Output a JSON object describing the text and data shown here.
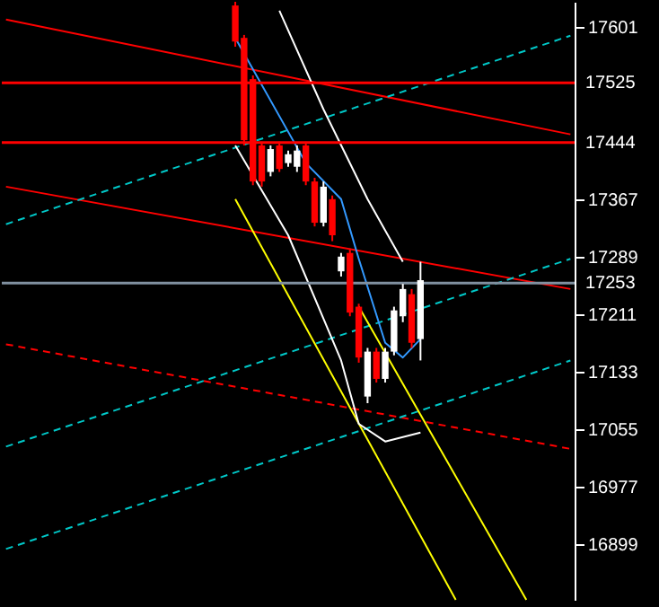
{
  "chart_data": {
    "type": "candlestick",
    "tick_labels": "y",
    "categories": [
      null,
      null,
      null,
      null,
      null,
      null,
      null,
      null,
      null,
      null,
      null,
      null,
      null,
      null,
      null,
      null,
      null,
      null,
      null,
      null,
      null,
      null,
      null,
      null,
      null,
      null,
      null,
      null,
      null,
      null,
      null,
      null,
      null,
      null,
      null,
      null,
      null,
      null,
      null,
      null,
      null,
      null,
      null,
      null,
      null,
      null,
      null,
      null,
      null,
      null,
      null,
      null,
      null,
      null,
      null,
      null,
      null,
      null,
      null,
      null,
      null,
      null,
      null,
      null,
      null
    ],
    "ohlc": [
      null,
      null,
      null,
      null,
      null,
      null,
      null,
      null,
      null,
      null,
      null,
      null,
      null,
      null,
      null,
      null,
      null,
      null,
      null,
      null,
      null,
      null,
      null,
      null,
      null,
      null,
      [
        17630,
        17635,
        17574,
        17581
      ],
      [
        17586,
        17590,
        17440,
        17447
      ],
      [
        17530,
        17535,
        17386,
        17391
      ],
      [
        17440,
        17445,
        17384,
        17391
      ],
      [
        17404,
        17440,
        17398,
        17435
      ],
      [
        17440,
        17445,
        17404,
        17408
      ],
      [
        17416,
        17433,
        17411,
        17428
      ],
      [
        17411,
        17440,
        17404,
        17433
      ],
      [
        17440,
        17445,
        17386,
        17391
      ],
      [
        17391,
        17396,
        17330,
        17335
      ],
      [
        17335,
        17391,
        17330,
        17384
      ],
      [
        17367,
        17372,
        17310,
        17318
      ],
      [
        17269,
        17294,
        17262,
        17289
      ],
      [
        17294,
        17300,
        17208,
        17213
      ],
      [
        17221,
        17225,
        17145,
        17152
      ],
      [
        17099,
        17165,
        17090,
        17160
      ],
      [
        17160,
        17165,
        17118,
        17123
      ],
      [
        17123,
        17165,
        17118,
        17160
      ],
      [
        17160,
        17221,
        17155,
        17216
      ],
      [
        17208,
        17252,
        17200,
        17245
      ],
      [
        17238,
        17245,
        17165,
        17172
      ],
      [
        17177,
        17282,
        17148,
        17257
      ],
      null,
      null,
      null,
      null,
      null,
      null,
      null,
      null,
      null,
      null,
      null,
      null,
      null,
      null,
      null,
      null,
      null
    ],
    "ylim": [
      16823,
      17635
    ],
    "yticks": [
      17601,
      17367,
      17289,
      17211,
      17133,
      17055,
      16977,
      16899
    ],
    "ref_lines": [
      {
        "axis": "y",
        "value": 17525,
        "label": "17525",
        "color": "#ff0000"
      },
      {
        "axis": "y",
        "value": 17444,
        "label": "17444",
        "color": "#ff0000"
      },
      {
        "axis": "y",
        "value": 17253,
        "label": "17253",
        "color": "#8090a0"
      }
    ],
    "series": [
      {
        "type": "line",
        "color": "#ff0000",
        "line_style": "solid",
        "values": [
          17611,
          null,
          null,
          null,
          null,
          null,
          null,
          null,
          null,
          null,
          null,
          null,
          null,
          null,
          null,
          null,
          null,
          null,
          null,
          null,
          null,
          null,
          null,
          null,
          null,
          null,
          null,
          null,
          null,
          null,
          null,
          null,
          null,
          null,
          null,
          null,
          null,
          null,
          null,
          null,
          null,
          null,
          null,
          null,
          null,
          null,
          null,
          null,
          null,
          null,
          null,
          null,
          null,
          null,
          null,
          null,
          null,
          null,
          null,
          null,
          null,
          null,
          null,
          null,
          17455
        ]
      },
      {
        "type": "line",
        "color": "#ff0000",
        "line_style": "solid",
        "values": [
          17384,
          null,
          null,
          null,
          null,
          null,
          null,
          null,
          null,
          null,
          null,
          null,
          null,
          null,
          null,
          null,
          null,
          null,
          null,
          null,
          null,
          null,
          null,
          null,
          null,
          null,
          null,
          null,
          null,
          null,
          null,
          null,
          null,
          null,
          null,
          null,
          null,
          null,
          null,
          null,
          null,
          null,
          null,
          null,
          null,
          null,
          null,
          null,
          null,
          null,
          null,
          null,
          null,
          null,
          null,
          null,
          null,
          null,
          null,
          null,
          null,
          null,
          null,
          null,
          17245
        ]
      },
      {
        "type": "line",
        "color": "#ff0000",
        "line_style": "dashed",
        "values": [
          17170,
          null,
          null,
          null,
          null,
          null,
          null,
          null,
          null,
          null,
          null,
          null,
          null,
          null,
          null,
          null,
          null,
          null,
          null,
          null,
          null,
          null,
          null,
          null,
          null,
          null,
          null,
          null,
          null,
          null,
          null,
          null,
          null,
          null,
          null,
          null,
          null,
          null,
          null,
          null,
          null,
          null,
          null,
          null,
          null,
          null,
          null,
          null,
          null,
          null,
          null,
          null,
          null,
          null,
          null,
          null,
          null,
          null,
          null,
          null,
          null,
          null,
          null,
          null,
          17028
        ]
      },
      {
        "type": "line",
        "color": "#00c8c8",
        "line_style": "dashed",
        "values": [
          17333,
          null,
          null,
          null,
          null,
          null,
          null,
          null,
          null,
          null,
          null,
          null,
          null,
          null,
          null,
          null,
          null,
          null,
          null,
          null,
          null,
          null,
          null,
          null,
          null,
          null,
          null,
          null,
          null,
          null,
          null,
          null,
          null,
          null,
          null,
          null,
          null,
          null,
          null,
          null,
          null,
          null,
          null,
          null,
          null,
          null,
          null,
          null,
          null,
          null,
          null,
          null,
          null,
          null,
          null,
          null,
          null,
          null,
          null,
          null,
          null,
          null,
          null,
          null,
          17589
        ]
      },
      {
        "type": "line",
        "color": "#00c8c8",
        "line_style": "dashed",
        "values": [
          17031,
          null,
          null,
          null,
          null,
          null,
          null,
          null,
          null,
          null,
          null,
          null,
          null,
          null,
          null,
          null,
          null,
          null,
          null,
          null,
          null,
          null,
          null,
          null,
          null,
          null,
          null,
          null,
          null,
          null,
          null,
          null,
          null,
          null,
          null,
          null,
          null,
          null,
          null,
          null,
          null,
          null,
          null,
          null,
          null,
          null,
          null,
          null,
          null,
          null,
          null,
          null,
          null,
          null,
          null,
          null,
          null,
          null,
          null,
          null,
          null,
          null,
          null,
          null,
          17286
        ]
      },
      {
        "type": "line",
        "color": "#00c8c8",
        "line_style": "dashed",
        "values": [
          16892,
          null,
          null,
          null,
          null,
          null,
          null,
          null,
          null,
          null,
          null,
          null,
          null,
          null,
          null,
          null,
          null,
          null,
          null,
          null,
          null,
          null,
          null,
          null,
          null,
          null,
          null,
          null,
          null,
          null,
          null,
          null,
          null,
          null,
          null,
          null,
          null,
          null,
          null,
          null,
          null,
          null,
          null,
          null,
          null,
          null,
          null,
          null,
          null,
          null,
          null,
          null,
          null,
          null,
          null,
          null,
          null,
          null,
          null,
          null,
          null,
          null,
          null,
          null,
          17148
        ]
      },
      {
        "type": "line",
        "color": "#ffff00",
        "line_style": "solid",
        "values": [
          null,
          null,
          null,
          null,
          null,
          null,
          null,
          null,
          null,
          null,
          null,
          null,
          null,
          null,
          null,
          null,
          null,
          null,
          null,
          null,
          null,
          null,
          null,
          null,
          null,
          null,
          17367,
          null,
          null,
          null,
          null,
          null,
          null,
          null,
          null,
          null,
          null,
          null,
          null,
          null,
          null,
          null,
          null,
          null,
          null,
          null,
          null,
          null,
          null,
          null,
          null,
          16823,
          null,
          null,
          null,
          null,
          null,
          null,
          null,
          null,
          null,
          null,
          null,
          null,
          null
        ]
      },
      {
        "type": "line",
        "color": "#ffff00",
        "line_style": "solid",
        "values": [
          null,
          null,
          null,
          null,
          null,
          null,
          null,
          null,
          null,
          null,
          null,
          null,
          null,
          null,
          null,
          null,
          null,
          null,
          null,
          null,
          null,
          null,
          null,
          null,
          null,
          null,
          null,
          null,
          null,
          null,
          null,
          null,
          null,
          null,
          null,
          null,
          null,
          null,
          null,
          null,
          17221,
          null,
          null,
          null,
          null,
          null,
          null,
          null,
          null,
          null,
          null,
          null,
          null,
          null,
          null,
          null,
          null,
          null,
          null,
          16823,
          null,
          null,
          null,
          null,
          null
        ]
      },
      {
        "type": "line",
        "color": "#ffffff",
        "line_style": "solid",
        "values": [
          null,
          null,
          null,
          null,
          null,
          null,
          null,
          null,
          null,
          null,
          null,
          null,
          null,
          null,
          null,
          null,
          null,
          null,
          null,
          null,
          null,
          null,
          null,
          null,
          null,
          null,
          null,
          null,
          null,
          null,
          null,
          17623,
          null,
          null,
          null,
          null,
          17489,
          null,
          null,
          null,
          null,
          17367,
          null,
          null,
          null,
          17282,
          null,
          null,
          null,
          null,
          null,
          null,
          null,
          null,
          null,
          null,
          null,
          null,
          null,
          null,
          null,
          null,
          null,
          null,
          null
        ]
      },
      {
        "type": "line",
        "color": "#ffffff",
        "line_style": "solid",
        "values": [
          null,
          null,
          null,
          null,
          null,
          null,
          null,
          null,
          null,
          null,
          null,
          null,
          null,
          null,
          null,
          null,
          null,
          null,
          null,
          null,
          null,
          null,
          null,
          null,
          null,
          null,
          17440,
          null,
          null,
          null,
          null,
          null,
          17318,
          null,
          null,
          null,
          null,
          null,
          17148,
          null,
          17062,
          null,
          null,
          17038,
          null,
          null,
          null,
          17050,
          null,
          null,
          null,
          null,
          null,
          null,
          null,
          null,
          null,
          null,
          null,
          null,
          null,
          null,
          null,
          null,
          null
        ]
      },
      {
        "type": "line",
        "color": "#3399ff",
        "line_style": "solid",
        "values": [
          null,
          null,
          null,
          null,
          null,
          null,
          null,
          null,
          null,
          null,
          null,
          null,
          null,
          null,
          null,
          null,
          null,
          null,
          null,
          null,
          null,
          null,
          null,
          null,
          null,
          null,
          17586,
          null,
          null,
          null,
          null,
          null,
          null,
          null,
          17416,
          null,
          null,
          null,
          17367,
          null,
          17286,
          null,
          null,
          17172,
          null,
          17152,
          null,
          17177,
          null,
          null,
          null,
          null,
          null,
          null,
          null,
          null,
          null,
          null,
          null,
          null,
          null,
          null,
          null,
          null,
          null
        ]
      }
    ]
  }
}
